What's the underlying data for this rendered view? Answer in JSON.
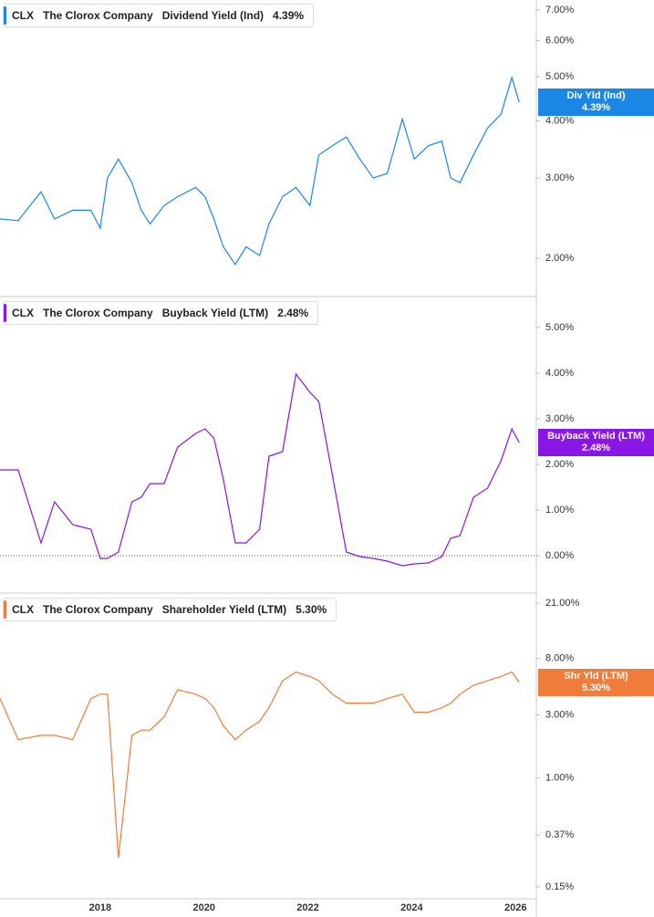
{
  "chart_data": [
    {
      "type": "line",
      "ticker": "CLX",
      "company": "The Clorox Company",
      "metric": "Dividend Yield (Ind)",
      "current": {
        "value": 4.39,
        "label": "4.39%"
      },
      "tag_label": "Div Yld (Ind)",
      "color": "#1a87e6",
      "log_scale": true,
      "xlim": [
        2016.07,
        2026.4
      ],
      "ylim": [
        1.65,
        7.36
      ],
      "yticks": [
        {
          "value": 2,
          "label": "2.00%"
        },
        {
          "value": 3,
          "label": "3.00%"
        },
        {
          "value": 4,
          "label": "4.00%"
        },
        {
          "value": 5,
          "label": "5.00%"
        },
        {
          "value": 6,
          "label": "6.00%"
        },
        {
          "value": 7,
          "label": "7.00%"
        }
      ],
      "x": [
        2016.07,
        2016.42,
        2016.86,
        2017.12,
        2017.47,
        2017.82,
        2018.0,
        2018.14,
        2018.35,
        2018.61,
        2018.79,
        2018.96,
        2019.23,
        2019.49,
        2019.84,
        2020.02,
        2020.19,
        2020.37,
        2020.6,
        2020.81,
        2021.07,
        2021.25,
        2021.51,
        2021.77,
        2022.04,
        2022.21,
        2022.47,
        2022.74,
        2023.0,
        2023.26,
        2023.53,
        2023.82,
        2024.05,
        2024.32,
        2024.58,
        2024.75,
        2024.93,
        2025.19,
        2025.46,
        2025.72,
        2025.93,
        2026.07
      ],
      "values": [
        2.44,
        2.42,
        2.8,
        2.44,
        2.55,
        2.55,
        2.33,
        3.0,
        3.3,
        2.93,
        2.55,
        2.38,
        2.61,
        2.73,
        2.86,
        2.73,
        2.44,
        2.12,
        1.94,
        2.12,
        2.03,
        2.38,
        2.73,
        2.86,
        2.61,
        3.37,
        3.53,
        3.69,
        3.3,
        3.0,
        3.07,
        4.04,
        3.3,
        3.53,
        3.61,
        3.0,
        2.93,
        3.37,
        3.86,
        4.14,
        4.98,
        4.39
      ]
    },
    {
      "type": "line",
      "ticker": "CLX",
      "company": "The Clorox Company",
      "metric": "Buyback Yield (LTM)",
      "current": {
        "value": 2.48,
        "label": "2.48%"
      },
      "tag_label": "Buyback Yield (LTM)",
      "color": "#8a16e6",
      "log_scale": false,
      "zero_line": true,
      "xlim": [
        2016.07,
        2026.4
      ],
      "ylim": [
        -0.82,
        5.66
      ],
      "yticks": [
        {
          "value": 0,
          "label": "0.00%"
        },
        {
          "value": 1,
          "label": "1.00%"
        },
        {
          "value": 2,
          "label": "2.00%"
        },
        {
          "value": 3,
          "label": "3.00%"
        },
        {
          "value": 4,
          "label": "4.00%"
        },
        {
          "value": 5,
          "label": "5.00%"
        }
      ],
      "x": [
        2016.07,
        2016.42,
        2016.86,
        2017.12,
        2017.47,
        2017.82,
        2018.0,
        2018.14,
        2018.35,
        2018.61,
        2018.79,
        2018.96,
        2019.23,
        2019.49,
        2019.84,
        2020.02,
        2020.19,
        2020.37,
        2020.6,
        2020.81,
        2021.07,
        2021.25,
        2021.51,
        2021.77,
        2022.04,
        2022.21,
        2022.47,
        2022.74,
        2023.0,
        2023.26,
        2023.53,
        2023.82,
        2024.05,
        2024.32,
        2024.58,
        2024.75,
        2024.93,
        2025.19,
        2025.46,
        2025.72,
        2025.93,
        2026.07
      ],
      "values": [
        1.88,
        1.88,
        0.28,
        1.18,
        0.68,
        0.58,
        -0.06,
        -0.06,
        0.08,
        1.18,
        1.28,
        1.58,
        1.58,
        2.38,
        2.68,
        2.78,
        2.58,
        1.68,
        0.28,
        0.28,
        0.58,
        2.18,
        2.28,
        3.98,
        3.58,
        3.38,
        1.78,
        0.08,
        -0.02,
        -0.06,
        -0.12,
        -0.22,
        -0.18,
        -0.16,
        -0.02,
        0.38,
        0.44,
        1.28,
        1.48,
        2.08,
        2.78,
        2.48
      ]
    },
    {
      "type": "line",
      "ticker": "CLX",
      "company": "The Clorox Company",
      "metric": "Shareholder Yield (LTM)",
      "current": {
        "value": 5.3,
        "label": "5.30%"
      },
      "tag_label": "Shr Yld (LTM)",
      "color": "#f07c3c",
      "log_scale": true,
      "xlim": [
        2016.07,
        2026.4
      ],
      "ylim": [
        0.122,
        24.6
      ],
      "yticks": [
        {
          "value": 0.15,
          "label": "0.15%"
        },
        {
          "value": 0.37,
          "label": "0.37%"
        },
        {
          "value": 1,
          "label": "1.00%"
        },
        {
          "value": 3,
          "label": "3.00%"
        },
        {
          "value": 8,
          "label": "8.00%"
        },
        {
          "value": 21,
          "label": "21.00%"
        }
      ],
      "xticks": [
        2018,
        2020,
        2022,
        2024,
        2026
      ],
      "x": [
        2016.07,
        2016.42,
        2016.86,
        2017.12,
        2017.47,
        2017.82,
        2018.0,
        2018.14,
        2018.35,
        2018.61,
        2018.79,
        2018.96,
        2019.23,
        2019.49,
        2019.84,
        2020.02,
        2020.19,
        2020.37,
        2020.6,
        2020.81,
        2021.07,
        2021.25,
        2021.51,
        2021.77,
        2022.04,
        2022.21,
        2022.47,
        2022.74,
        2023.0,
        2023.26,
        2023.53,
        2023.82,
        2024.05,
        2024.32,
        2024.58,
        2024.75,
        2024.93,
        2025.19,
        2025.46,
        2025.72,
        2025.93,
        2026.07
      ],
      "values": [
        3.98,
        1.95,
        2.1,
        2.1,
        1.95,
        3.98,
        4.3,
        4.3,
        0.248,
        2.1,
        2.3,
        2.3,
        2.9,
        4.65,
        4.3,
        3.98,
        3.4,
        2.48,
        1.95,
        2.3,
        2.68,
        3.4,
        5.43,
        6.32,
        5.86,
        5.43,
        4.3,
        3.68,
        3.68,
        3.68,
        3.98,
        4.3,
        3.14,
        3.14,
        3.4,
        3.68,
        4.3,
        5.02,
        5.43,
        5.86,
        6.32,
        5.3
      ]
    }
  ]
}
